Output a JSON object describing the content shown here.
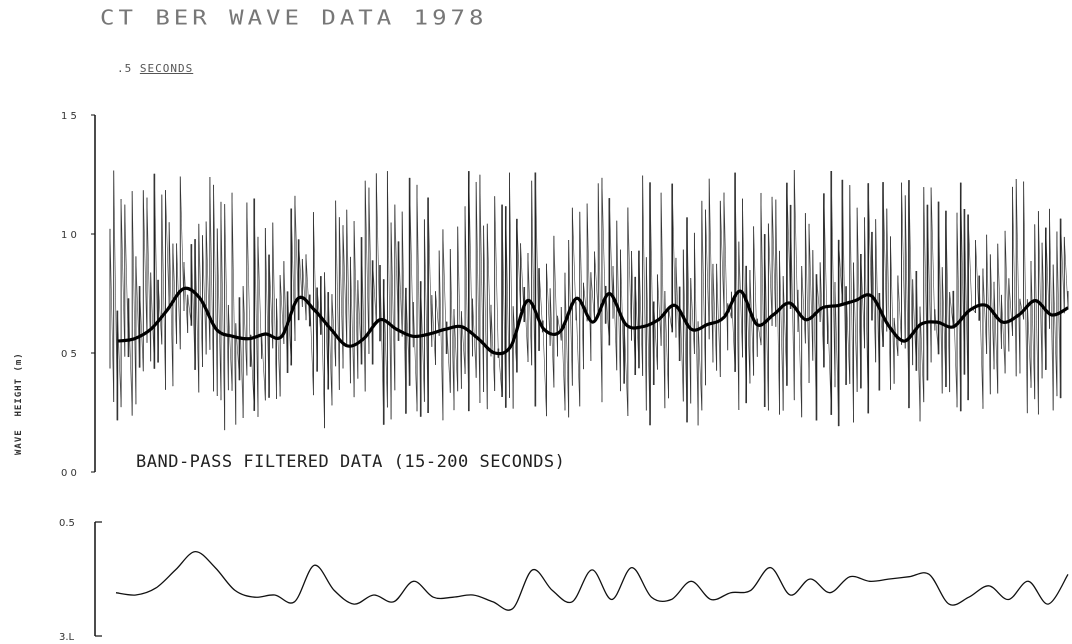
{
  "header": {
    "title": "CT BER WAVE DATA 1978",
    "subtitle_left": ".5",
    "subtitle_units": "SECONDS"
  },
  "band_label": "BAND-PASS FILTERED DATA (15-200 SECONDS)",
  "ylabel": "WAVE  HEIGHT (m)",
  "chart_data": [
    {
      "type": "line",
      "title": "",
      "xlabel": "",
      "ylabel": "WAVE HEIGHT (m)",
      "ylim": [
        0.0,
        1.5
      ],
      "yticks": [
        "0 0",
        "0 5",
        "1 0",
        "1 5"
      ],
      "grid": false,
      "series": [
        {
          "description_role": "raw",
          "style": "thin vertical spikes",
          "peak_max": 1.27,
          "trough_min": 0.13
        },
        {
          "description_role": "smoothed",
          "style": "thick line",
          "values": [
            0.55,
            0.56,
            0.6,
            0.68,
            0.77,
            0.73,
            0.6,
            0.57,
            0.56,
            0.58,
            0.57,
            0.73,
            0.68,
            0.6,
            0.53,
            0.56,
            0.64,
            0.6,
            0.57,
            0.58,
            0.6,
            0.61,
            0.56,
            0.5,
            0.53,
            0.72,
            0.6,
            0.59,
            0.73,
            0.63,
            0.75,
            0.62,
            0.61,
            0.64,
            0.7,
            0.6,
            0.62,
            0.65,
            0.76,
            0.62,
            0.66,
            0.71,
            0.64,
            0.69,
            0.7,
            0.72,
            0.74,
            0.62,
            0.55,
            0.62,
            0.63,
            0.61,
            0.68,
            0.7,
            0.63,
            0.66,
            0.72,
            0.66,
            0.69
          ]
        }
      ]
    },
    {
      "type": "line",
      "title": "",
      "xlabel": "",
      "ylabel": "",
      "ylim": [
        0.0,
        0.5
      ],
      "yticks": [
        "3.L",
        "0.5"
      ],
      "grid": false,
      "series": [
        {
          "description_role": "band-pass filtered",
          "values": [
            0.19,
            0.18,
            0.21,
            0.29,
            0.37,
            0.3,
            0.2,
            0.17,
            0.18,
            0.15,
            0.31,
            0.2,
            0.14,
            0.18,
            0.15,
            0.24,
            0.17,
            0.17,
            0.18,
            0.15,
            0.12,
            0.29,
            0.2,
            0.15,
            0.29,
            0.16,
            0.3,
            0.17,
            0.16,
            0.24,
            0.16,
            0.19,
            0.2,
            0.3,
            0.18,
            0.25,
            0.19,
            0.26,
            0.24,
            0.25,
            0.26,
            0.27,
            0.14,
            0.17,
            0.22,
            0.16,
            0.24,
            0.14,
            0.27
          ]
        }
      ]
    }
  ]
}
